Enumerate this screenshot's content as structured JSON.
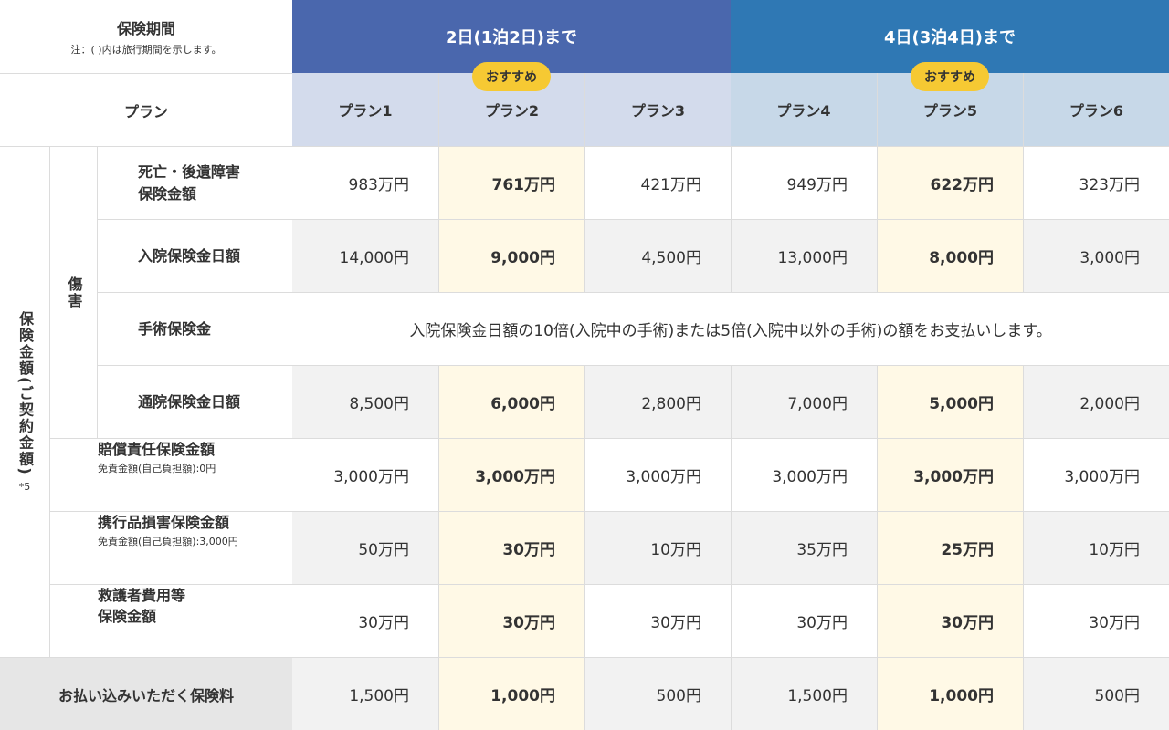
{
  "header": {
    "period_label": "保険期間",
    "period_note": "注：( )内は旅行期間を示します。",
    "period1": "2日(1泊2日)まで",
    "period2": "4日(3泊4日)まで",
    "plan_label": "プラン",
    "recommend_badge": "おすすめ",
    "plans": [
      "プラン1",
      "プラン2",
      "プラン3",
      "プラン4",
      "プラン5",
      "プラン6"
    ]
  },
  "side": {
    "coverage_label": "保険金額(ご契約金額)",
    "coverage_note": "*5",
    "injury_label": "傷害"
  },
  "rows": {
    "death": {
      "label_line1": "死亡・後遺障害",
      "label_line2": "保険金額",
      "values": [
        "983万円",
        "761万円",
        "421万円",
        "949万円",
        "622万円",
        "323万円"
      ]
    },
    "hospital": {
      "label": "入院保険金日額",
      "values": [
        "14,000円",
        "9,000円",
        "4,500円",
        "13,000円",
        "8,000円",
        "3,000円"
      ]
    },
    "surgery": {
      "label": "手術保険金",
      "text": "入院保険金日額の10倍(入院中の手術)または5倍(入院中以外の手術)の額をお支払いします。"
    },
    "outpatient": {
      "label": "通院保険金日額",
      "values": [
        "8,500円",
        "6,000円",
        "2,800円",
        "7,000円",
        "5,000円",
        "2,000円"
      ]
    },
    "liability": {
      "label": "賠償責任保険金額",
      "sub": "免責金額(自己負担額):0円",
      "values": [
        "3,000万円",
        "3,000万円",
        "3,000万円",
        "3,000万円",
        "3,000万円",
        "3,000万円"
      ]
    },
    "belongings": {
      "label": "携行品損害保険金額",
      "sub": "免責金額(自己負担額):3,000円",
      "values": [
        "50万円",
        "30万円",
        "10万円",
        "35万円",
        "25万円",
        "10万円"
      ]
    },
    "rescue": {
      "label_line1": "救護者費用等",
      "label_line2": "保険金額",
      "values": [
        "30万円",
        "30万円",
        "30万円",
        "30万円",
        "30万円",
        "30万円"
      ]
    },
    "premium": {
      "label": "お払い込みいただく保険料",
      "values": [
        "1,500円",
        "1,000円",
        "500円",
        "1,500円",
        "1,000円",
        "500円"
      ]
    }
  },
  "colors": {
    "period1_bg": "#4a67ad",
    "period2_bg": "#2f78b4",
    "plan_hdr1_bg": "#d3dbec",
    "plan_hdr2_bg": "#c7d8e8",
    "recommend_bg": "#fff9e6",
    "badge_bg": "#f6c933"
  }
}
